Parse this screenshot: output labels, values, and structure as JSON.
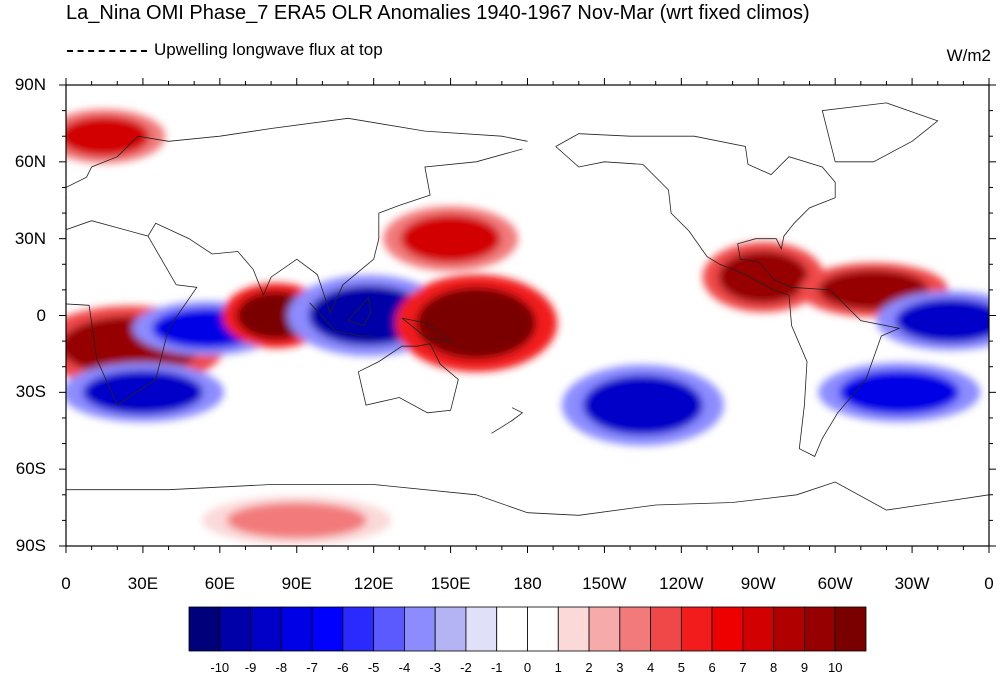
{
  "title": "La_Nina OMI Phase_7 ERA5 OLR Anomalies 1940-1967 Nov-Mar (wrt fixed climos)",
  "legend_line": {
    "style": "dashed",
    "label": "Upwelling longwave flux at top"
  },
  "units": "W/m2",
  "map": {
    "projection": "cylindrical-equidistant",
    "lat_range": [
      -90,
      90
    ],
    "lon_range": [
      0,
      360
    ],
    "lat_labels": [
      "90N",
      "60N",
      "30N",
      "0",
      "30S",
      "60S",
      "90S"
    ],
    "lon_labels": [
      "0",
      "30E",
      "60E",
      "90E",
      "120E",
      "150E",
      "180",
      "150W",
      "120W",
      "90W",
      "60W",
      "30W",
      "0"
    ]
  },
  "colorbar": {
    "labels": [
      "-10",
      "-9",
      "-8",
      "-7",
      "-6",
      "-5",
      "-4",
      "-3",
      "-2",
      "-1",
      "0",
      "1",
      "2",
      "3",
      "4",
      "5",
      "6",
      "7",
      "8",
      "9",
      "10"
    ],
    "colors": [
      "#00007a",
      "#0000a8",
      "#0000c8",
      "#0000e6",
      "#0000ff",
      "#2a2aff",
      "#5a5aff",
      "#8c8cff",
      "#b4b4f4",
      "#e0e0f8",
      "#ffffff",
      "#ffffff",
      "#fbd9d9",
      "#f6aaaa",
      "#f27a7a",
      "#f04848",
      "#f21c1c",
      "#ee0000",
      "#d20000",
      "#b00000",
      "#960000",
      "#7a0000"
    ]
  },
  "anomaly_regions": [
    {
      "name": "Africa subtropical south",
      "lon": 25,
      "lat": -12,
      "value": 9
    },
    {
      "name": "Indian Ocean west",
      "lon": 55,
      "lat": -5,
      "value": -8
    },
    {
      "name": "Indian Ocean central",
      "lon": 82,
      "lat": 0,
      "value": 10
    },
    {
      "name": "Maritime Continent",
      "lon": 118,
      "lat": 0,
      "value": -10
    },
    {
      "name": "Central Pacific equatorial",
      "lon": 160,
      "lat": -3,
      "value": 10
    },
    {
      "name": "North Pacific subtropics",
      "lon": 150,
      "lat": 30,
      "value": 7
    },
    {
      "name": "Central America / east Pacific",
      "lon": 272,
      "lat": 15,
      "value": 9
    },
    {
      "name": "Atlantic tropical north",
      "lon": 315,
      "lat": 10,
      "value": 9
    },
    {
      "name": "Atlantic equatorial east",
      "lon": 345,
      "lat": -2,
      "value": -9
    },
    {
      "name": "South Pacific",
      "lon": 225,
      "lat": -35,
      "value": -9
    },
    {
      "name": "South Atlantic",
      "lon": 325,
      "lat": -30,
      "value": -8
    },
    {
      "name": "Southern Africa",
      "lon": 30,
      "lat": -30,
      "value": -9
    },
    {
      "name": "Arctic Europe",
      "lon": 15,
      "lat": 70,
      "value": 7
    },
    {
      "name": "Antarctic coast",
      "lon": 90,
      "lat": -80,
      "value": 3
    }
  ]
}
